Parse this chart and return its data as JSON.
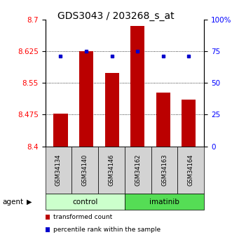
{
  "title": "GDS3043 / 203268_s_at",
  "samples": [
    "GSM34134",
    "GSM34140",
    "GSM34146",
    "GSM34162",
    "GSM34163",
    "GSM34164"
  ],
  "bar_values": [
    8.478,
    8.625,
    8.573,
    8.685,
    8.527,
    8.51
  ],
  "percentile_values": [
    71,
    75,
    71,
    75,
    71,
    71
  ],
  "groups": [
    {
      "label": "control",
      "indices": [
        0,
        1,
        2
      ],
      "color": "#ccffcc"
    },
    {
      "label": "imatinib",
      "indices": [
        3,
        4,
        5
      ],
      "color": "#55dd55"
    }
  ],
  "y_min": 8.4,
  "y_max": 8.7,
  "y_ticks": [
    8.4,
    8.475,
    8.55,
    8.625,
    8.7
  ],
  "y_tick_labels": [
    "8.4",
    "8.475",
    "8.55",
    "8.625",
    "8.7"
  ],
  "right_y_ticks": [
    0,
    25,
    50,
    75,
    100
  ],
  "right_y_tick_labels": [
    "0",
    "25",
    "50",
    "75",
    "100%"
  ],
  "bar_color": "#bb0000",
  "dot_color": "#0000cc",
  "bar_width": 0.55,
  "title_fontsize": 10,
  "tick_fontsize": 7.5,
  "agent_label": "agent",
  "legend_items": [
    {
      "color": "#bb0000",
      "label": "transformed count"
    },
    {
      "color": "#0000cc",
      "label": "percentile rank within the sample"
    }
  ]
}
